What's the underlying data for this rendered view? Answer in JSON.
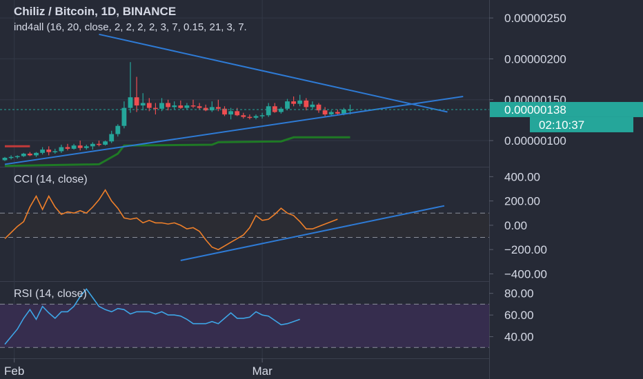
{
  "header": {
    "title": "Chiliz / Bitcoin, 1D, BINANCE",
    "indicator": "ind4all (16, 20, close, 2, 2, 2, 2, 3, 7, 0.15, 21, 3, 7."
  },
  "colors": {
    "background": "#262a36",
    "grid": "#333846",
    "text": "#d6dae6",
    "up": "#25a69a",
    "down": "#ee4d50",
    "trendline": "#2e7bd6",
    "cci": "#f0802a",
    "rsi": "#3ea7e8",
    "ma_green": "#1f7a25",
    "ma_red": "#c23a3a",
    "rsi_band": "#362d4e",
    "cci_band": "#2b2c33"
  },
  "chart_data": [
    {
      "name": "price",
      "type": "candlestick",
      "yticks": [
        "0.00000250",
        "0.00000200",
        "0.00000150",
        "0.00000100"
      ],
      "ytick_values": [
        2.5,
        2.0,
        1.5,
        1.0
      ],
      "ylim": [
        0.68,
        2.72
      ],
      "current_price": "0.00000138",
      "current_price_value": 1.38,
      "countdown": "02:10:37",
      "candles": [
        [
          0.76,
          0.8,
          0.75,
          0.79
        ],
        [
          0.79,
          0.82,
          0.77,
          0.8
        ],
        [
          0.8,
          0.82,
          0.78,
          0.81
        ],
        [
          0.81,
          0.85,
          0.8,
          0.84
        ],
        [
          0.84,
          0.86,
          0.81,
          0.82
        ],
        [
          0.82,
          0.86,
          0.8,
          0.85
        ],
        [
          0.85,
          0.92,
          0.83,
          0.89
        ],
        [
          0.89,
          0.93,
          0.82,
          0.86
        ],
        [
          0.86,
          0.9,
          0.84,
          0.87
        ],
        [
          0.87,
          0.95,
          0.85,
          0.92
        ],
        [
          0.92,
          0.96,
          0.88,
          0.9
        ],
        [
          0.9,
          0.96,
          0.89,
          0.94
        ],
        [
          0.94,
          1.0,
          0.88,
          0.91
        ],
        [
          0.91,
          0.95,
          0.89,
          0.93
        ],
        [
          0.93,
          0.98,
          0.89,
          0.96
        ],
        [
          0.96,
          1.0,
          0.93,
          0.95
        ],
        [
          0.95,
          1.0,
          0.94,
          0.99
        ],
        [
          0.99,
          1.12,
          0.97,
          1.08
        ],
        [
          1.08,
          1.2,
          1.05,
          1.18
        ],
        [
          1.18,
          1.48,
          1.15,
          1.4
        ],
        [
          1.4,
          1.96,
          1.34,
          1.53
        ],
        [
          1.53,
          1.78,
          1.35,
          1.43
        ],
        [
          1.43,
          1.58,
          1.37,
          1.46
        ],
        [
          1.46,
          1.52,
          1.36,
          1.4
        ],
        [
          1.4,
          1.46,
          1.32,
          1.39
        ],
        [
          1.39,
          1.52,
          1.36,
          1.46
        ],
        [
          1.46,
          1.5,
          1.37,
          1.41
        ],
        [
          1.41,
          1.48,
          1.38,
          1.43
        ],
        [
          1.43,
          1.49,
          1.39,
          1.4
        ],
        [
          1.4,
          1.46,
          1.38,
          1.43
        ],
        [
          1.43,
          1.5,
          1.4,
          1.42
        ],
        [
          1.42,
          1.46,
          1.38,
          1.4
        ],
        [
          1.4,
          1.44,
          1.36,
          1.37
        ],
        [
          1.37,
          1.48,
          1.35,
          1.41
        ],
        [
          1.41,
          1.5,
          1.36,
          1.39
        ],
        [
          1.39,
          1.42,
          1.3,
          1.32
        ],
        [
          1.32,
          1.4,
          1.26,
          1.36
        ],
        [
          1.36,
          1.4,
          1.3,
          1.31
        ],
        [
          1.31,
          1.34,
          1.27,
          1.29
        ],
        [
          1.29,
          1.32,
          1.26,
          1.28
        ],
        [
          1.28,
          1.32,
          1.26,
          1.3
        ],
        [
          1.3,
          1.34,
          1.27,
          1.31
        ],
        [
          1.31,
          1.46,
          1.29,
          1.42
        ],
        [
          1.42,
          1.46,
          1.34,
          1.35
        ],
        [
          1.35,
          1.41,
          1.33,
          1.39
        ],
        [
          1.39,
          1.51,
          1.37,
          1.48
        ],
        [
          1.48,
          1.54,
          1.42,
          1.45
        ],
        [
          1.45,
          1.56,
          1.42,
          1.49
        ],
        [
          1.49,
          1.52,
          1.37,
          1.41
        ],
        [
          1.41,
          1.48,
          1.38,
          1.44
        ],
        [
          1.44,
          1.46,
          1.34,
          1.37
        ],
        [
          1.37,
          1.41,
          1.3,
          1.32
        ],
        [
          1.32,
          1.37,
          1.3,
          1.35
        ],
        [
          1.35,
          1.38,
          1.31,
          1.33
        ],
        [
          1.33,
          1.4,
          1.31,
          1.38
        ],
        [
          1.38,
          1.44,
          1.32,
          1.38
        ]
      ],
      "green_line": [
        [
          0,
          0.69
        ],
        [
          15,
          0.71
        ],
        [
          18,
          0.84
        ],
        [
          19,
          0.94
        ],
        [
          33,
          0.95
        ],
        [
          34,
          0.98
        ],
        [
          44,
          0.99
        ],
        [
          46,
          1.04
        ],
        [
          55,
          1.04
        ]
      ],
      "red_line": [
        [
          0,
          0.93
        ],
        [
          4,
          0.93
        ]
      ],
      "trendlines": [
        {
          "from": [
            15,
            2.3
          ],
          "to": [
            70.5,
            1.35
          ]
        },
        {
          "from": [
            0,
            0.71
          ],
          "to": [
            73,
            1.54
          ]
        }
      ]
    },
    {
      "name": "cci",
      "type": "line",
      "title": "CCI (14, close)",
      "yticks": [
        "400.00",
        "200.00",
        "0.00",
        "−200.00",
        "−400.00"
      ],
      "ytick_values": [
        400,
        200,
        0,
        -200,
        -400
      ],
      "ylim": [
        -460,
        470
      ],
      "band": [
        -100,
        100
      ],
      "values": [
        -110,
        -60,
        -10,
        30,
        150,
        240,
        130,
        240,
        150,
        90,
        110,
        100,
        120,
        100,
        150,
        210,
        290,
        200,
        140,
        60,
        50,
        60,
        20,
        40,
        20,
        20,
        10,
        20,
        0,
        -30,
        -20,
        -50,
        -120,
        -180,
        -200,
        -170,
        -140,
        -110,
        -80,
        -20,
        80,
        40,
        50,
        90,
        140,
        100,
        80,
        30,
        -30,
        -30,
        -10,
        10,
        30,
        50
      ],
      "trendline": {
        "from": [
          28,
          -290
        ],
        "to": [
          70,
          160
        ]
      }
    },
    {
      "name": "rsi",
      "type": "line",
      "title": "RSI (14, close)",
      "yticks": [
        "80.00",
        "60.00",
        "40.00"
      ],
      "ytick_values": [
        80,
        60,
        40
      ],
      "ylim": [
        20,
        90
      ],
      "band": [
        30,
        70
      ],
      "values": [
        33,
        40,
        47,
        57,
        65,
        56,
        68,
        62,
        57,
        63,
        63,
        68,
        77,
        84,
        76,
        68,
        65,
        63,
        66,
        65,
        61,
        63,
        63,
        63,
        61,
        63,
        60,
        60,
        59,
        56,
        52,
        52,
        52,
        54,
        52,
        57,
        62,
        57,
        57,
        58,
        63,
        60,
        59,
        55,
        51,
        52,
        54,
        56
      ]
    }
  ],
  "xaxis": {
    "labels": [
      {
        "text": "Feb",
        "index": 1.5
      },
      {
        "text": "Mar",
        "index": 41
      }
    ]
  }
}
